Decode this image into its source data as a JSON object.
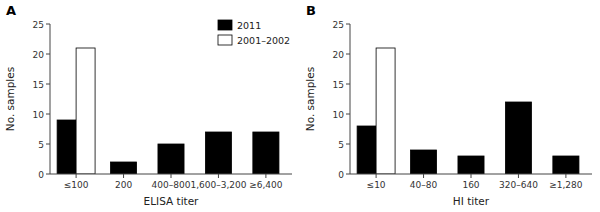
{
  "chart_data": [
    {
      "type": "bar",
      "title": "A",
      "categories": [
        "≤100",
        "200",
        "400–800",
        "1,600–3,200",
        "≥6,400"
      ],
      "series": [
        {
          "name": "2011",
          "color": "black",
          "values": [
            9,
            2,
            5,
            7,
            7
          ]
        },
        {
          "name": "2001–2002",
          "color": "white",
          "values": [
            21,
            0,
            0,
            0,
            0
          ]
        }
      ],
      "x_label": "ELISA titer",
      "y_label": "No. samples",
      "ylim": [
        0,
        25
      ],
      "yticks": [
        0,
        5,
        10,
        15,
        20,
        25
      ],
      "grid": false,
      "legend": "upper right"
    },
    {
      "type": "bar",
      "title": "B",
      "categories": [
        "≤10",
        "40–80",
        "160",
        "320–640",
        "≥1,280"
      ],
      "series": [
        {
          "name": "2011",
          "color": "black",
          "values": [
            8,
            4,
            3,
            12,
            3
          ]
        },
        {
          "name": "2001–2002",
          "color": "white",
          "values": [
            21,
            0,
            0,
            0,
            0
          ]
        }
      ],
      "x_label": "HI titer",
      "y_label": "No. samples",
      "ylim": [
        0,
        25
      ],
      "yticks": [
        0,
        5,
        10,
        15,
        20,
        25
      ],
      "grid": false,
      "legend": false
    }
  ]
}
